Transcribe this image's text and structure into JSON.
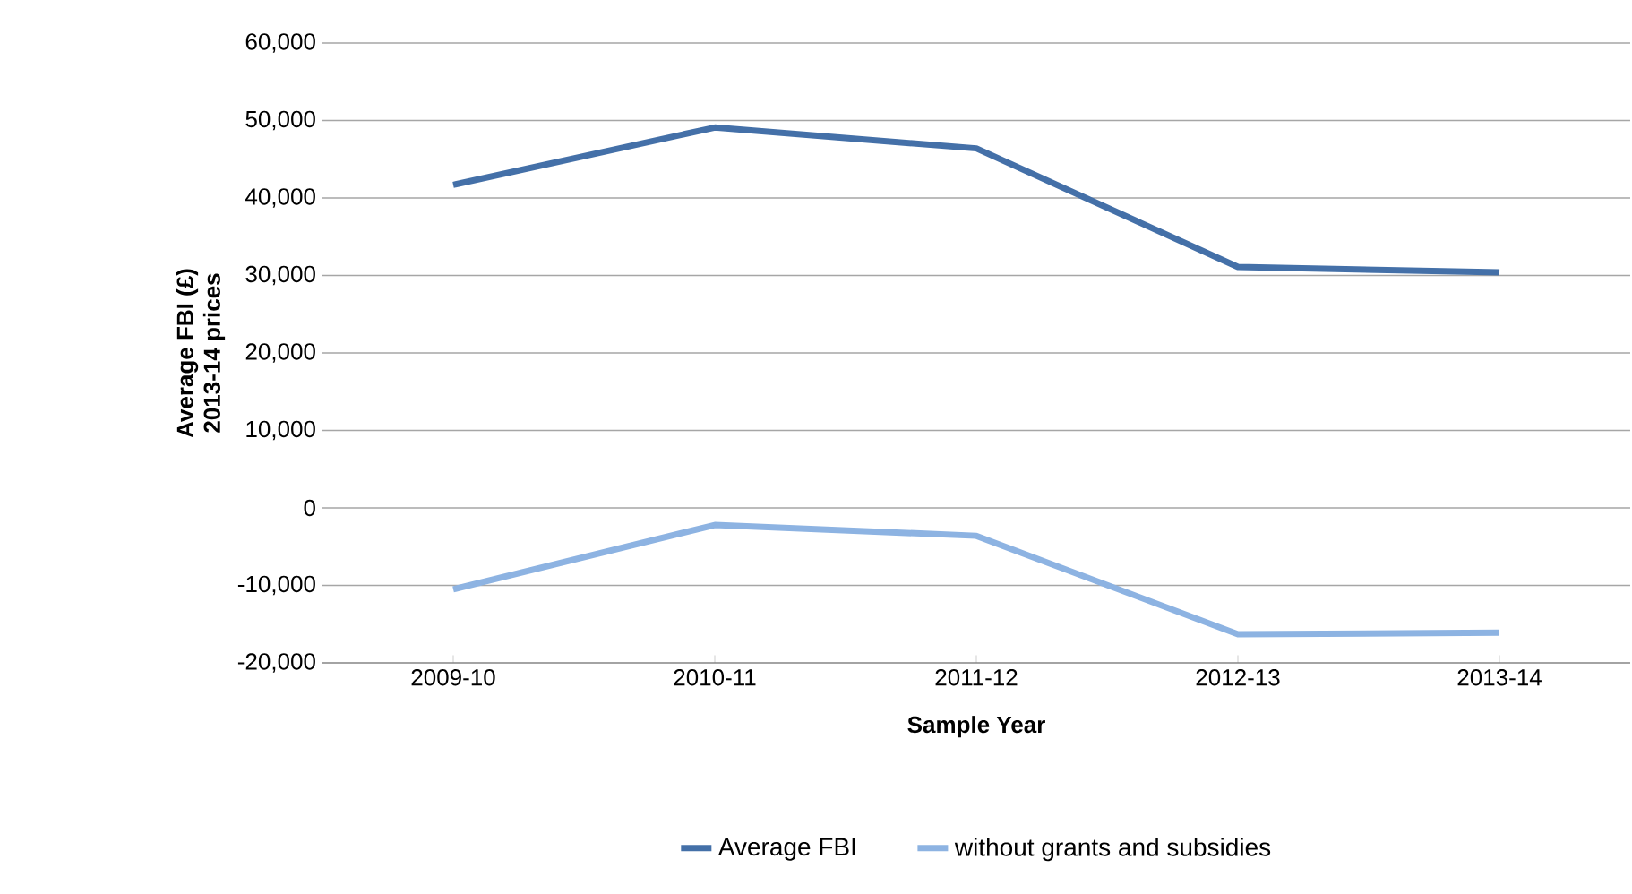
{
  "chart_data": {
    "type": "line",
    "xlabel": "Sample Year",
    "ylabel": "Average FBI (£)\n2013-14 prices",
    "categories": [
      "2009-10",
      "2010-11",
      "2011-12",
      "2012-13",
      "2013-14"
    ],
    "series": [
      {
        "name": "Average FBI",
        "color": "#4470a8",
        "values": [
          41700,
          49100,
          46400,
          31100,
          30400
        ]
      },
      {
        "name": "without grants and subsidies",
        "color": "#8db3e2",
        "values": [
          -10500,
          -2200,
          -3600,
          -16300,
          -16100
        ]
      }
    ],
    "ylim": [
      -20000,
      60000
    ],
    "yticks": [
      {
        "value": -20000,
        "label": "-20,000"
      },
      {
        "value": -10000,
        "label": "-10,000"
      },
      0,
      {
        "value": 10000,
        "label": "10,000"
      },
      {
        "value": 20000,
        "label": "20,000"
      },
      {
        "value": 30000,
        "label": "30,000"
      },
      {
        "value": 40000,
        "label": "40,000"
      },
      {
        "value": 50000,
        "label": "50,000"
      },
      {
        "value": 60000,
        "label": "60,000"
      }
    ],
    "grid": "y",
    "legend": "bottom",
    "marker": "none",
    "line_style": "solid"
  }
}
